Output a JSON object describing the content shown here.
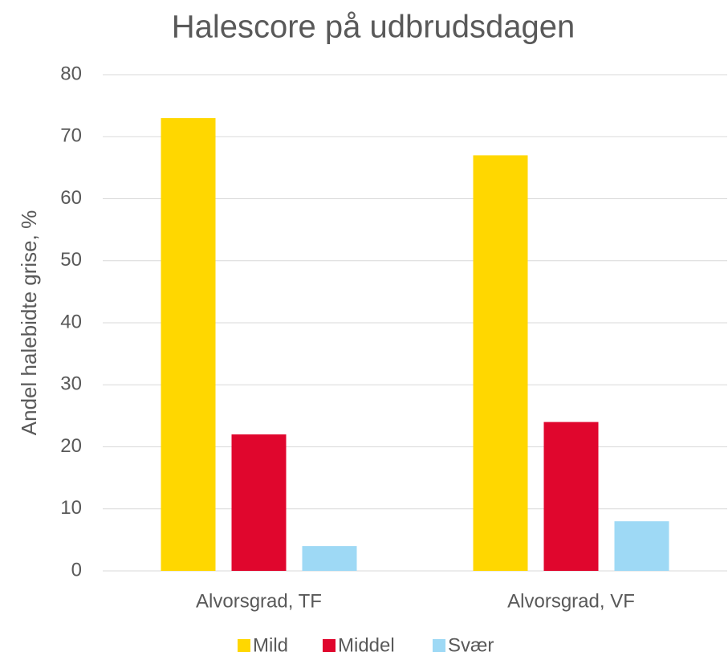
{
  "chart_data": {
    "type": "bar",
    "title": "Halescore på udbrudsdagen",
    "y_label": "Andel halebidte grise, %",
    "categories": [
      "Alvorsgrad, TF",
      "Alvorsgrad, VF"
    ],
    "series": [
      {
        "name": "Mild",
        "color": "#FFD700",
        "values": [
          73,
          67
        ]
      },
      {
        "name": "Middel",
        "color": "#E0062D",
        "values": [
          22,
          24
        ]
      },
      {
        "name": "Svær",
        "color": "#9ED9F5",
        "values": [
          4,
          8
        ]
      }
    ],
    "ylim": [
      0,
      80
    ],
    "yticks": [
      0,
      10,
      20,
      30,
      40,
      50,
      60,
      70,
      80
    ],
    "grid": true,
    "legend": "bottom"
  }
}
